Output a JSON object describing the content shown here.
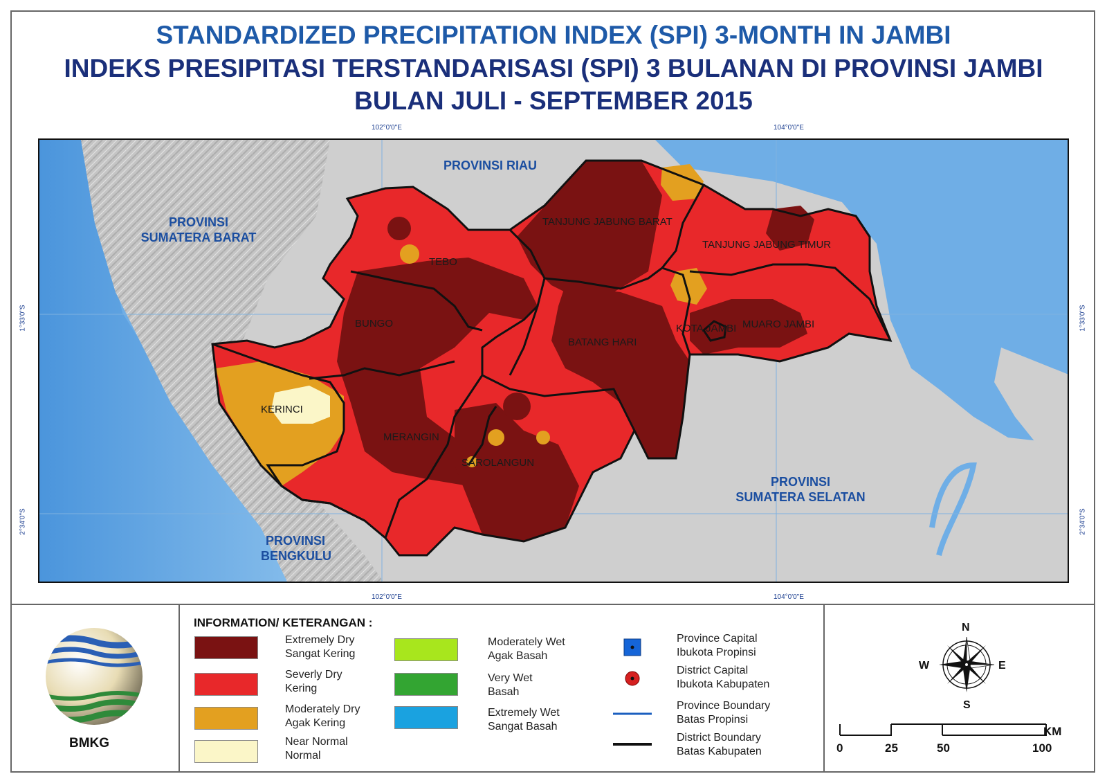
{
  "title": {
    "line1": "STANDARDIZED PRECIPITATION INDEX (SPI) 3-MONTH IN JAMBI",
    "line2": "INDEKS PRESIPITASI TERSTANDARISASI (SPI) 3 BULANAN DI PROVINSI JAMBI",
    "line3": "BULAN JULI - SEPTEMBER 2015"
  },
  "coords": {
    "lon1": "102°0'0\"E",
    "lon2": "104°0'0\"E",
    "lat1": "1°33'0\"S",
    "lat2": "2°34'0\"S"
  },
  "provinces": {
    "riau": "PROVINSI RIAU",
    "sumbar_1": "PROVINSI",
    "sumbar_2": "SUMATERA BARAT",
    "bengkulu_1": "PROVINSI",
    "bengkulu_2": "BENGKULU",
    "sumsel_1": "PROVINSI",
    "sumsel_2": "SUMATERA SELATAN"
  },
  "districts": {
    "tebo": "TEBO",
    "bungo": "BUNGO",
    "kerinci": "KERINCI",
    "merangin": "MERANGIN",
    "sarolangun": "SAROLANGUN",
    "batang_hari": "BATANG HARI",
    "tanjab_barat": "TANJUNG JABUNG BARAT",
    "tanjab_timur": "TANJUNG JABUNG TIMUR",
    "kota_jambi": "KOTA JAMBI",
    "muaro_jambi": "MUARO JAMBI"
  },
  "colors": {
    "extremely_dry": "#7a1212",
    "severely_dry": "#e8282a",
    "moderately_dry": "#e3a020",
    "near_normal": "#fbf6c8",
    "moderately_wet": "#a8e61d",
    "very_wet": "#33a532",
    "extremely_wet": "#1aa2e0",
    "sea": "#6faee6",
    "land": "#c9c9c9"
  },
  "legend": {
    "heading": "INFORMATION/ KETERANGAN :",
    "items": [
      {
        "en": "Extremely Dry",
        "id": "Sangat Kering"
      },
      {
        "en": "Severly Dry",
        "id": "Kering"
      },
      {
        "en": "Moderately Dry",
        "id": "Agak Kering"
      },
      {
        "en": "Near Normal",
        "id": "Normal"
      },
      {
        "en": "Moderately Wet",
        "id": "Agak Basah"
      },
      {
        "en": "Very Wet",
        "id": "Basah"
      },
      {
        "en": "Extremely Wet",
        "id": "Sangat Basah"
      }
    ],
    "symbols": [
      {
        "en": "Province Capital",
        "id": "Ibukota Propinsi"
      },
      {
        "en": "District Capital",
        "id": "Ibukota Kabupaten"
      },
      {
        "en": "Province Boundary",
        "id": "Batas Propinsi"
      },
      {
        "en": "District Boundary",
        "id": "Batas Kabupaten"
      }
    ]
  },
  "logo_label": "BMKG",
  "compass": {
    "n": "N",
    "s": "S",
    "e": "E",
    "w": "W"
  },
  "scale": {
    "unit": "KM",
    "ticks": [
      "0",
      "25",
      "50",
      "100"
    ]
  }
}
